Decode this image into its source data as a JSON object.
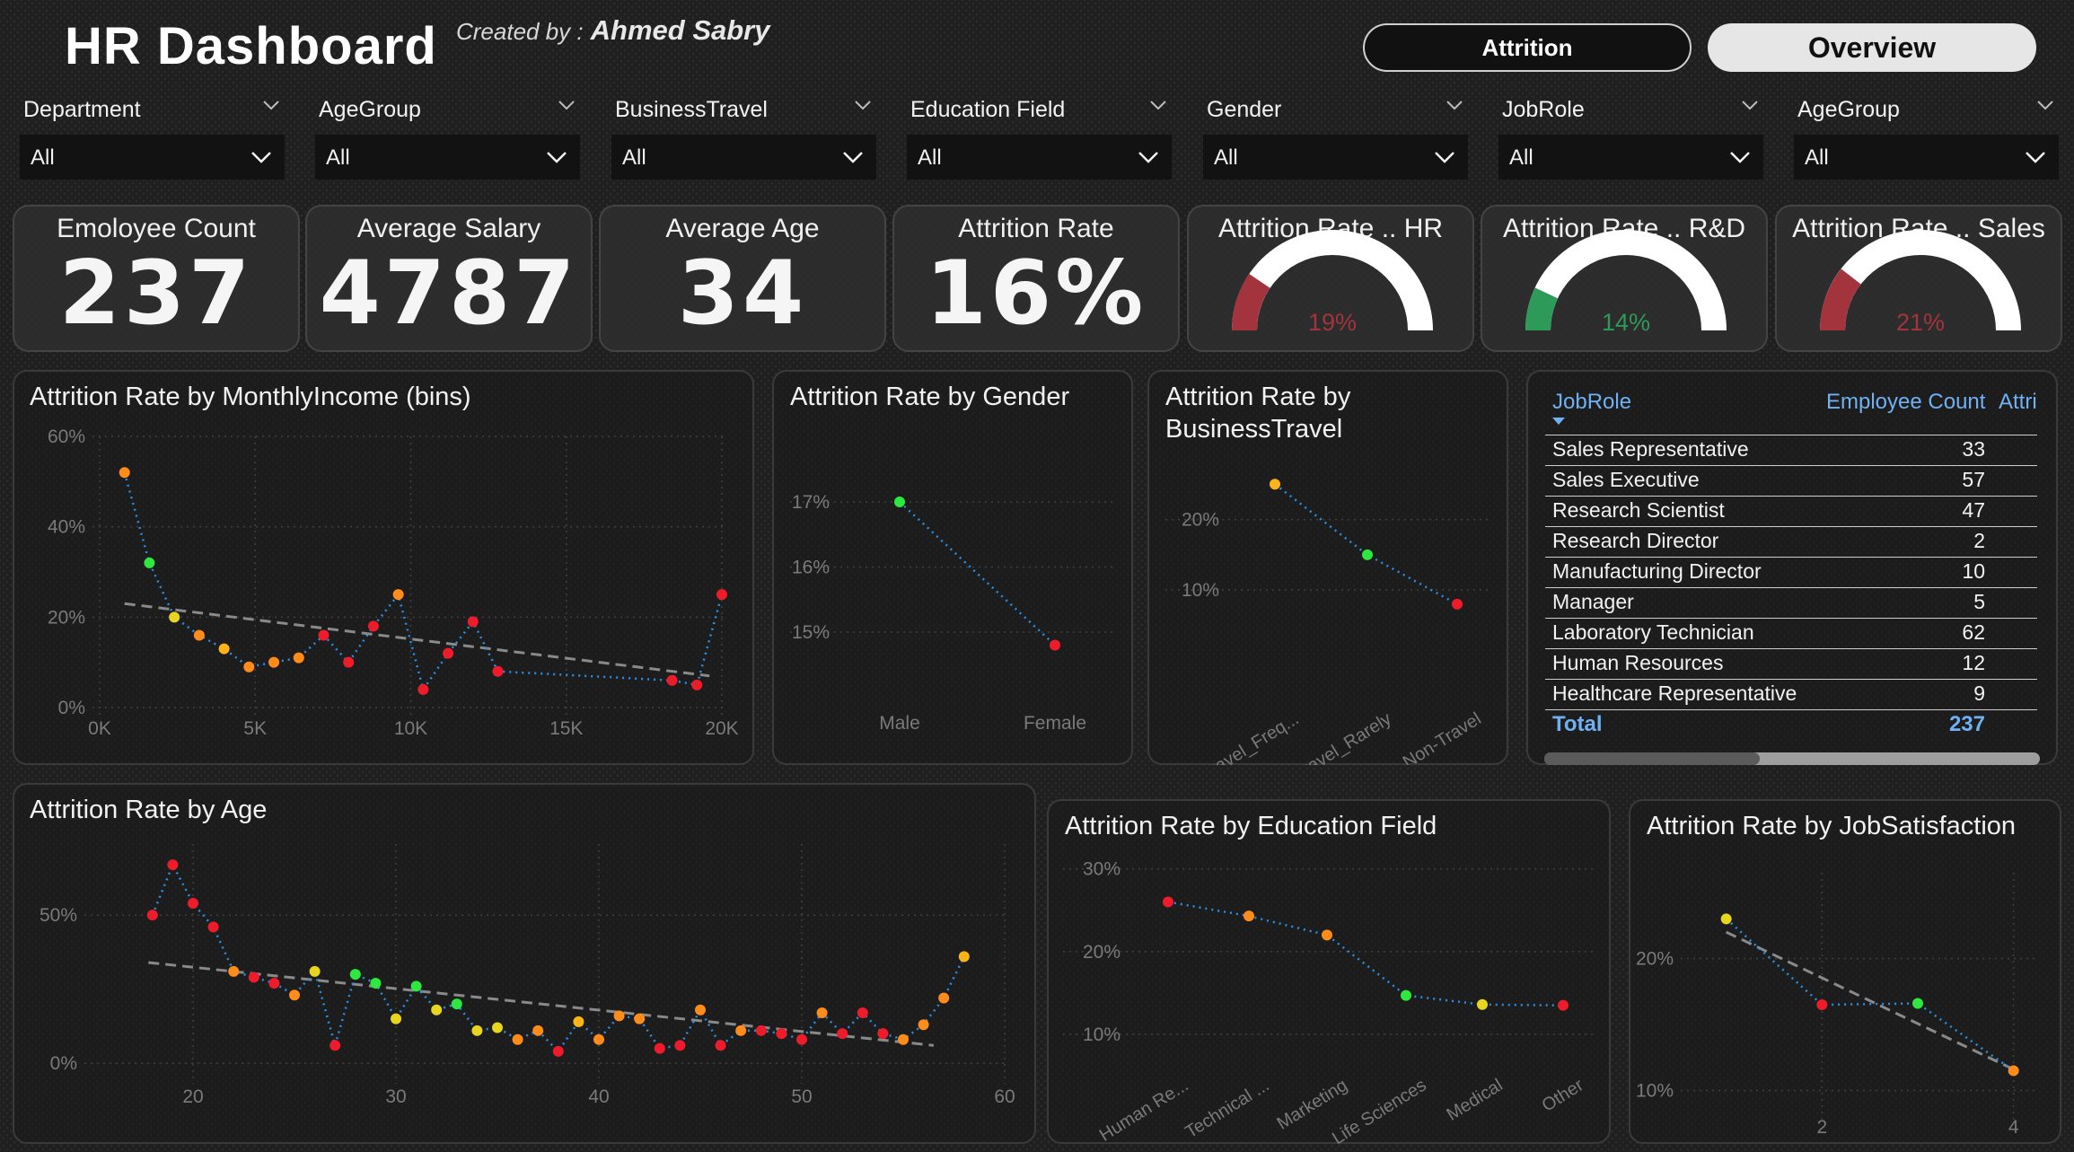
{
  "header": {
    "title": "HR Dashboard",
    "created_by_label": "Created by :",
    "author": "Ahmed Sabry"
  },
  "nav": {
    "attrition": "Attrition",
    "overview": "Overview"
  },
  "slicers": [
    {
      "label": "Department",
      "value": "All"
    },
    {
      "label": "AgeGroup",
      "value": "All"
    },
    {
      "label": "BusinessTravel",
      "value": "All"
    },
    {
      "label": "Education Field",
      "value": "All"
    },
    {
      "label": "Gender",
      "value": "All"
    },
    {
      "label": "JobRole",
      "value": "All"
    },
    {
      "label": "AgeGroup",
      "value": "All"
    }
  ],
  "kpis": [
    {
      "title": "Emoloyee Count",
      "value": "237"
    },
    {
      "title": "Average Salary",
      "value": "4787"
    },
    {
      "title": "Average Age",
      "value": "34"
    },
    {
      "title": "Attrition Rate",
      "value": "16%"
    }
  ],
  "gauges": [
    {
      "title": "Attrition Rate .. HR",
      "label": "19%",
      "value": 0.19,
      "color": "#a3333d"
    },
    {
      "title": "Attrition Rate .. R&D",
      "label": "14%",
      "value": 0.14,
      "color": "#2e9a5a"
    },
    {
      "title": "Attrition Rate .. Sales",
      "label": "21%",
      "value": 0.21,
      "color": "#a3333d"
    }
  ],
  "colors": {
    "red": "#ee1c2a",
    "orange": "#ff8c1a",
    "yellow": "#e8d51f",
    "green": "#2ee83f",
    "gold": "#ffb31a",
    "dotline": "#2c8fe3",
    "trend": "#8a8a8a",
    "axis": "#7a7a7a",
    "gauge_track": "#ffffff"
  },
  "table": {
    "headers": {
      "jobrole": "JobRole",
      "count": "Employee Count",
      "attr": "Attri"
    },
    "rows": [
      {
        "role": "Sales Representative",
        "count": "33"
      },
      {
        "role": "Sales Executive",
        "count": "57"
      },
      {
        "role": "Research Scientist",
        "count": "47"
      },
      {
        "role": "Research Director",
        "count": "2"
      },
      {
        "role": "Manufacturing Director",
        "count": "10"
      },
      {
        "role": "Manager",
        "count": "5"
      },
      {
        "role": "Laboratory Technician",
        "count": "62"
      },
      {
        "role": "Human Resources",
        "count": "12"
      },
      {
        "role": "Healthcare Representative",
        "count": "9"
      }
    ],
    "total_label": "Total",
    "total_value": "237"
  },
  "chart_data": [
    {
      "id": "income",
      "type": "line",
      "title": "Attrition Rate by MonthlyIncome (bins)",
      "xlabel": "",
      "ylabel": "",
      "xlim": [
        0,
        20000
      ],
      "ylim": [
        0,
        60
      ],
      "xticks": [
        0,
        5000,
        10000,
        15000,
        20000
      ],
      "xtick_labels": [
        "0K",
        "5K",
        "10K",
        "15K",
        "20K"
      ],
      "yticks": [
        0,
        20,
        40,
        60
      ],
      "ytick_labels": [
        "0%",
        "20%",
        "40%",
        "60%"
      ],
      "points": [
        {
          "x": 800,
          "y": 52,
          "c": "orange"
        },
        {
          "x": 1600,
          "y": 32,
          "c": "green"
        },
        {
          "x": 2400,
          "y": 20,
          "c": "yellow"
        },
        {
          "x": 3200,
          "y": 16,
          "c": "orange"
        },
        {
          "x": 4000,
          "y": 13,
          "c": "gold"
        },
        {
          "x": 4800,
          "y": 9,
          "c": "orange"
        },
        {
          "x": 5600,
          "y": 10,
          "c": "orange"
        },
        {
          "x": 6400,
          "y": 11,
          "c": "orange"
        },
        {
          "x": 7200,
          "y": 16,
          "c": "red"
        },
        {
          "x": 8000,
          "y": 10,
          "c": "red"
        },
        {
          "x": 8800,
          "y": 18,
          "c": "red"
        },
        {
          "x": 9600,
          "y": 25,
          "c": "orange"
        },
        {
          "x": 10400,
          "y": 4,
          "c": "red"
        },
        {
          "x": 11200,
          "y": 12,
          "c": "red"
        },
        {
          "x": 12000,
          "y": 19,
          "c": "red"
        },
        {
          "x": 12800,
          "y": 8,
          "c": "red"
        },
        {
          "x": 18400,
          "y": 6,
          "c": "red"
        },
        {
          "x": 19200,
          "y": 5,
          "c": "red"
        },
        {
          "x": 20000,
          "y": 25,
          "c": "red"
        }
      ],
      "trend": [
        [
          800,
          23
        ],
        [
          19600,
          7
        ]
      ]
    },
    {
      "id": "gender",
      "type": "line",
      "title": "Attrition Rate by Gender",
      "categories": [
        "Male",
        "Female"
      ],
      "values": [
        17,
        14.8
      ],
      "colors": [
        "green",
        "red"
      ],
      "ylim": [
        14.2,
        17.4
      ],
      "yticks": [
        15,
        16,
        17
      ],
      "ytick_labels": [
        "15%",
        "16%",
        "17%"
      ]
    },
    {
      "id": "travel",
      "type": "line",
      "title": "Attrition Rate by BusinessTravel",
      "categories": [
        "Travel_Freq...",
        "Travel_Rarely",
        "Non-Travel"
      ],
      "values": [
        25,
        15,
        8
      ],
      "colors": [
        "gold",
        "green",
        "red"
      ],
      "ylim": [
        2,
        30
      ],
      "yticks": [
        10,
        20
      ],
      "ytick_labels": [
        "10%",
        "20%"
      ]
    },
    {
      "id": "age",
      "type": "line",
      "title": "Attrition Rate by Age",
      "xlim": [
        15,
        60
      ],
      "ylim": [
        -3,
        74
      ],
      "xticks": [
        20,
        30,
        40,
        50,
        60
      ],
      "xtick_labels": [
        "20",
        "30",
        "40",
        "50",
        "60"
      ],
      "yticks": [
        0,
        50
      ],
      "ytick_labels": [
        "0%",
        "50%"
      ],
      "points": [
        {
          "x": 18,
          "y": 50,
          "c": "red"
        },
        {
          "x": 19,
          "y": 67,
          "c": "red"
        },
        {
          "x": 20,
          "y": 54,
          "c": "red"
        },
        {
          "x": 21,
          "y": 46,
          "c": "red"
        },
        {
          "x": 22,
          "y": 31,
          "c": "orange"
        },
        {
          "x": 23,
          "y": 29,
          "c": "red"
        },
        {
          "x": 24,
          "y": 27,
          "c": "red"
        },
        {
          "x": 25,
          "y": 23,
          "c": "orange"
        },
        {
          "x": 26,
          "y": 31,
          "c": "yellow"
        },
        {
          "x": 27,
          "y": 6,
          "c": "red"
        },
        {
          "x": 28,
          "y": 30,
          "c": "green"
        },
        {
          "x": 29,
          "y": 27,
          "c": "green"
        },
        {
          "x": 30,
          "y": 15,
          "c": "yellow"
        },
        {
          "x": 31,
          "y": 26,
          "c": "green"
        },
        {
          "x": 32,
          "y": 18,
          "c": "yellow"
        },
        {
          "x": 33,
          "y": 20,
          "c": "green"
        },
        {
          "x": 34,
          "y": 11,
          "c": "yellow"
        },
        {
          "x": 35,
          "y": 12,
          "c": "yellow"
        },
        {
          "x": 36,
          "y": 8,
          "c": "orange"
        },
        {
          "x": 37,
          "y": 11,
          "c": "orange"
        },
        {
          "x": 38,
          "y": 4,
          "c": "red"
        },
        {
          "x": 39,
          "y": 14,
          "c": "gold"
        },
        {
          "x": 40,
          "y": 8,
          "c": "orange"
        },
        {
          "x": 41,
          "y": 16,
          "c": "orange"
        },
        {
          "x": 42,
          "y": 15,
          "c": "orange"
        },
        {
          "x": 43,
          "y": 5,
          "c": "red"
        },
        {
          "x": 44,
          "y": 6,
          "c": "red"
        },
        {
          "x": 45,
          "y": 18,
          "c": "orange"
        },
        {
          "x": 46,
          "y": 6,
          "c": "red"
        },
        {
          "x": 47,
          "y": 11,
          "c": "orange"
        },
        {
          "x": 48,
          "y": 11,
          "c": "red"
        },
        {
          "x": 49,
          "y": 10,
          "c": "red"
        },
        {
          "x": 50,
          "y": 8,
          "c": "red"
        },
        {
          "x": 51,
          "y": 17,
          "c": "orange"
        },
        {
          "x": 52,
          "y": 10,
          "c": "red"
        },
        {
          "x": 53,
          "y": 17,
          "c": "red"
        },
        {
          "x": 54,
          "y": 10,
          "c": "red"
        },
        {
          "x": 55,
          "y": 8,
          "c": "orange"
        },
        {
          "x": 56,
          "y": 13,
          "c": "orange"
        },
        {
          "x": 57,
          "y": 22,
          "c": "orange"
        },
        {
          "x": 58,
          "y": 36,
          "c": "gold"
        }
      ],
      "trend": [
        [
          17.8,
          34
        ],
        [
          56.5,
          6
        ]
      ]
    },
    {
      "id": "education",
      "type": "line",
      "title": "Attrition Rate by Education Field",
      "categories": [
        "Human Re...",
        "Technical ...",
        "Marketing",
        "Life Sciences",
        "Medical",
        "Other"
      ],
      "values": [
        26,
        24.3,
        22,
        14.7,
        13.6,
        13.5
      ],
      "colors": [
        "red",
        "orange",
        "orange",
        "green",
        "yellow",
        "red"
      ],
      "ylim": [
        5,
        33
      ],
      "yticks": [
        10,
        20,
        30
      ],
      "ytick_labels": [
        "10%",
        "20%",
        "30%"
      ]
    },
    {
      "id": "jobsat",
      "type": "line",
      "title": "Attrition Rate by JobSatisfaction",
      "xlim": [
        0.6,
        4.2
      ],
      "ylim": [
        8.4,
        26.5
      ],
      "xticks": [
        2,
        4
      ],
      "xtick_labels": [
        "2",
        "4"
      ],
      "yticks": [
        10,
        20
      ],
      "ytick_labels": [
        "10%",
        "20%"
      ],
      "points": [
        {
          "x": 1,
          "y": 23,
          "c": "yellow"
        },
        {
          "x": 2,
          "y": 16.5,
          "c": "red"
        },
        {
          "x": 3,
          "y": 16.6,
          "c": "green"
        },
        {
          "x": 4,
          "y": 11.5,
          "c": "orange"
        }
      ],
      "trend": [
        [
          1,
          22
        ],
        [
          4,
          11.6
        ]
      ]
    }
  ]
}
